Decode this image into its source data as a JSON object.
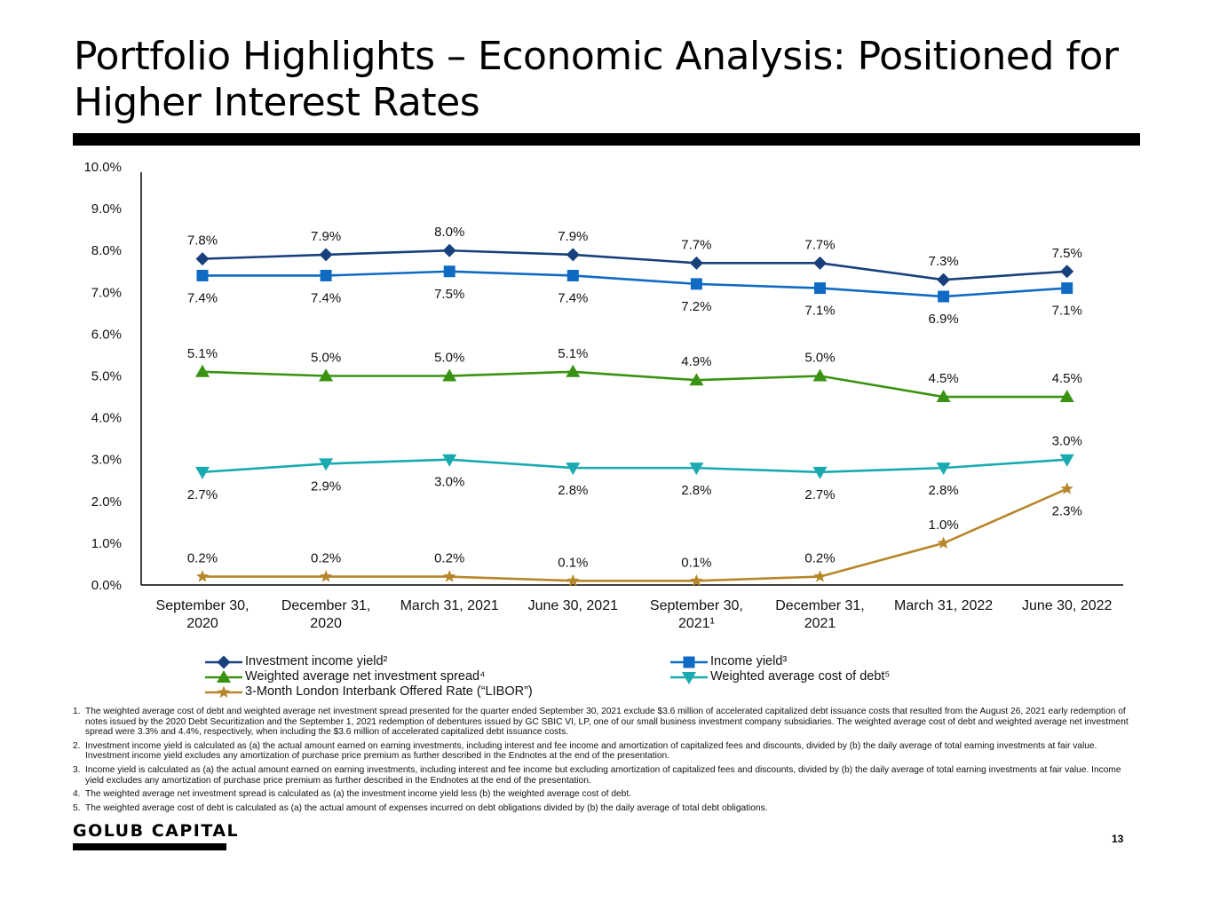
{
  "page": {
    "title": "Portfolio Highlights – Economic Analysis: Positioned for Higher Interest Rates",
    "logo": "GOLUB CAPITAL",
    "page_number": "13"
  },
  "chart_data": {
    "type": "line",
    "title": "",
    "xlabel": "",
    "ylabel": "",
    "ylim": [
      0,
      10
    ],
    "y_ticks": [
      "0.0%",
      "1.0%",
      "2.0%",
      "3.0%",
      "4.0%",
      "5.0%",
      "6.0%",
      "7.0%",
      "8.0%",
      "9.0%",
      "10.0%"
    ],
    "categories": [
      [
        "September 30,",
        "2020"
      ],
      [
        "December 31,",
        "2020"
      ],
      [
        "March 31, 2021"
      ],
      [
        "June 30, 2021"
      ],
      [
        "September 30,",
        "2021¹"
      ],
      [
        "December 31,",
        "2021"
      ],
      [
        "March 31, 2022"
      ],
      [
        "June 30, 2022"
      ]
    ],
    "grid": false,
    "legend_position": "bottom",
    "series": [
      {
        "name": "Investment income yield²",
        "marker": "diamond",
        "color": "#17407c",
        "values": [
          7.8,
          7.9,
          8.0,
          7.9,
          7.7,
          7.7,
          7.3,
          7.5
        ],
        "labels": [
          "7.8%",
          "7.9%",
          "8.0%",
          "7.9%",
          "7.7%",
          "7.7%",
          "7.3%",
          "7.5%"
        ],
        "label_pos": [
          "above",
          "above",
          "above",
          "above",
          "above",
          "above",
          "above",
          "above"
        ]
      },
      {
        "name": "Income yield³",
        "marker": "square",
        "color": "#0f6ac4",
        "values": [
          7.4,
          7.4,
          7.5,
          7.4,
          7.2,
          7.1,
          6.9,
          7.1
        ],
        "labels": [
          "7.4%",
          "7.4%",
          "7.5%",
          "7.4%",
          "7.2%",
          "7.1%",
          "6.9%",
          "7.1%"
        ],
        "label_pos": [
          "below",
          "below",
          "below",
          "below",
          "below",
          "below",
          "below",
          "below"
        ]
      },
      {
        "name": "Weighted average net investment spread⁴",
        "marker": "triangle-up",
        "color": "#3a9212",
        "values": [
          5.1,
          5.0,
          5.0,
          5.1,
          4.9,
          5.0,
          4.5,
          4.5
        ],
        "labels": [
          "5.1%",
          "5.0%",
          "5.0%",
          "5.1%",
          "4.9%",
          "5.0%",
          "4.5%",
          "4.5%"
        ],
        "label_pos": [
          "above",
          "above",
          "above",
          "above",
          "above",
          "above",
          "above",
          "above"
        ]
      },
      {
        "name": "Weighted average cost of debt⁵",
        "marker": "triangle-down",
        "color": "#19aab0",
        "values": [
          2.7,
          2.9,
          3.0,
          2.8,
          2.8,
          2.7,
          2.8,
          3.0
        ],
        "labels": [
          "2.7%",
          "2.9%",
          "3.0%",
          "2.8%",
          "2.8%",
          "2.7%",
          "2.8%",
          "3.0%"
        ],
        "label_pos": [
          "below",
          "below",
          "below",
          "below",
          "below",
          "below",
          "below",
          "above"
        ]
      },
      {
        "name": "3-Month London Interbank Offered Rate (“LIBOR”)",
        "marker": "star",
        "color": "#b8862a",
        "values": [
          0.2,
          0.2,
          0.2,
          0.1,
          0.1,
          0.2,
          1.0,
          2.3
        ],
        "labels": [
          "0.2%",
          "0.2%",
          "0.2%",
          "0.1%",
          "0.1%",
          "0.2%",
          "1.0%",
          "2.3%"
        ],
        "label_pos": [
          "above",
          "above",
          "above",
          "above",
          "above",
          "above",
          "above",
          "below"
        ]
      }
    ]
  },
  "footnotes": [
    {
      "num": "1.",
      "text": "The weighted average cost of debt and weighted average net investment spread presented for the quarter ended September 30, 2021 exclude $3.6 million of accelerated capitalized debt issuance costs that resulted from the August 26, 2021 early redemption of notes issued by the 2020 Debt Securitization and the September 1, 2021 redemption of debentures issued by GC SBIC VI, LP, one of our small business investment company subsidiaries. The weighted average cost of debt and weighted average net investment spread were 3.3% and 4.4%, respectively, when including the $3.6 million of accelerated capitalized debt issuance costs."
    },
    {
      "num": "2.",
      "text": "Investment income yield is calculated as (a) the actual amount earned on earning investments, including interest and fee income and amortization of capitalized fees and discounts, divided by (b) the daily average of total earning investments at fair value. Investment income yield excludes any amortization of purchase price premium as further described in the Endnotes at the end of the presentation."
    },
    {
      "num": "3.",
      "text": "Income yield is calculated as (a) the actual amount earned on earning investments, including interest and fee income but excluding amortization of capitalized fees and discounts, divided by (b) the daily average of total earning investments at fair value. Income yield excludes any amortization of purchase price premium as further described in the Endnotes at the end of the presentation."
    },
    {
      "num": "4.",
      "text": "The weighted average net investment spread is calculated as (a) the investment income yield less (b) the weighted average cost of debt."
    },
    {
      "num": "5.",
      "text": "The weighted average cost of debt is calculated as (a) the actual amount of expenses incurred on debt obligations divided by (b) the daily average of total debt obligations."
    }
  ]
}
